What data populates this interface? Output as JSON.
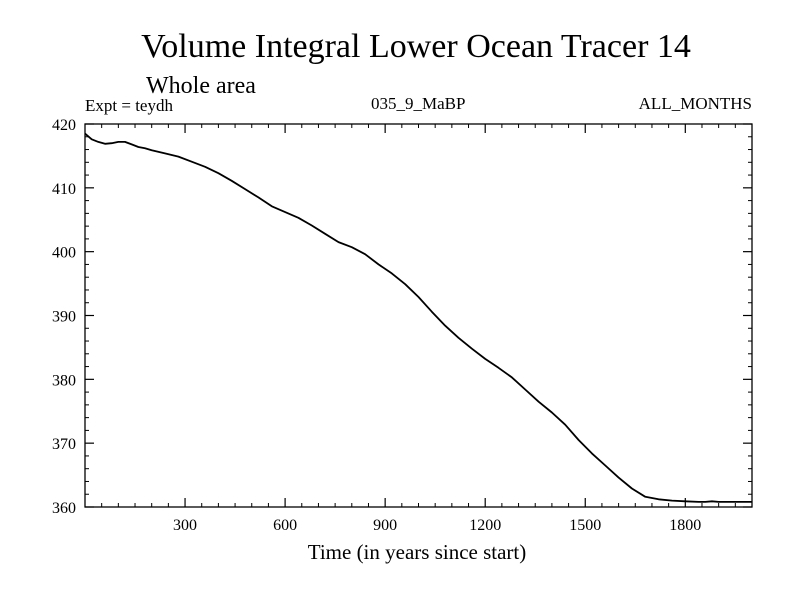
{
  "chart_data": {
    "type": "line",
    "title": "Volume Integral Lower Ocean Tracer 14",
    "subtitle": "Whole area",
    "experiment_label": "Expt = teydh",
    "run_label": "035_9_MaBP",
    "months_label": "ALL_MONTHS",
    "xlabel": "Time (in years since start)",
    "ylabel": "",
    "xlim": [
      0,
      2000
    ],
    "ylim": [
      360,
      420
    ],
    "xticks": [
      300,
      600,
      900,
      1200,
      1500,
      1800
    ],
    "yticks": [
      360,
      370,
      380,
      390,
      400,
      410,
      420
    ],
    "grid": false,
    "series": [
      {
        "name": "Lower Ocean Tracer 14",
        "color": "#000000",
        "x": [
          0,
          20,
          40,
          60,
          80,
          100,
          120,
          140,
          160,
          180,
          200,
          240,
          280,
          320,
          360,
          400,
          440,
          480,
          520,
          560,
          600,
          640,
          680,
          720,
          760,
          800,
          840,
          880,
          920,
          960,
          1000,
          1040,
          1080,
          1120,
          1160,
          1200,
          1240,
          1280,
          1320,
          1360,
          1400,
          1440,
          1480,
          1520,
          1560,
          1600,
          1640,
          1680,
          1720,
          1760,
          1800,
          1840,
          1860,
          1880,
          1900,
          1920,
          1940,
          1960,
          1980,
          2000
        ],
        "y": [
          418.5,
          417.6,
          417.2,
          416.9,
          417.0,
          417.2,
          417.2,
          416.8,
          416.4,
          416.2,
          415.9,
          415.4,
          414.9,
          414.1,
          413.3,
          412.3,
          411.1,
          409.8,
          408.5,
          407.1,
          406.2,
          405.3,
          404.1,
          402.8,
          401.5,
          400.7,
          399.6,
          398.0,
          396.6,
          394.9,
          392.9,
          390.6,
          388.4,
          386.5,
          384.8,
          383.2,
          381.8,
          380.3,
          378.4,
          376.5,
          374.8,
          372.9,
          370.5,
          368.4,
          366.5,
          364.6,
          362.9,
          361.6,
          361.2,
          361.0,
          360.9,
          360.8,
          360.8,
          360.9,
          360.8,
          360.8,
          360.8,
          360.8,
          360.8,
          360.8
        ]
      }
    ]
  }
}
